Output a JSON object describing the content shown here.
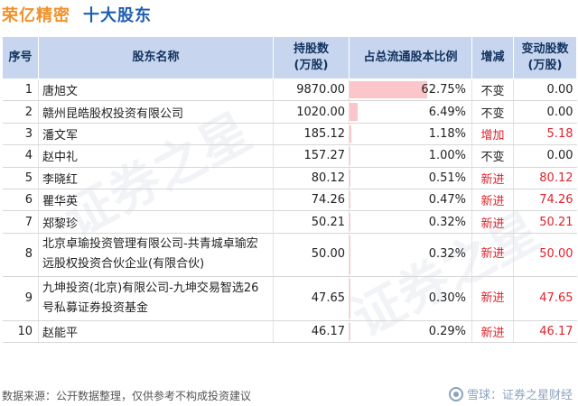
{
  "header": {
    "company": "荣亿精密",
    "subtitle": "十大股东"
  },
  "table": {
    "columns": [
      "序号",
      "股东名称",
      "持股数\n(万股)",
      "占总流通股本比例",
      "增减",
      "变动股数\n(万股)"
    ],
    "rows": [
      {
        "idx": "1",
        "name": "唐旭文",
        "shares": "9870.00",
        "ratio": "62.75%",
        "ratio_value": 62.75,
        "change": "不变",
        "change_type": "same",
        "delta": "0.00"
      },
      {
        "idx": "2",
        "name": "赣州昆皓股权投资有限公司",
        "shares": "1020.00",
        "ratio": "6.49%",
        "ratio_value": 6.49,
        "change": "不变",
        "change_type": "same",
        "delta": "0.00"
      },
      {
        "idx": "3",
        "name": "潘文军",
        "shares": "185.12",
        "ratio": "1.18%",
        "ratio_value": 1.18,
        "change": "增加",
        "change_type": "up",
        "delta": "5.18"
      },
      {
        "idx": "4",
        "name": "赵中礼",
        "shares": "157.27",
        "ratio": "1.00%",
        "ratio_value": 1.0,
        "change": "不变",
        "change_type": "same",
        "delta": "0.00"
      },
      {
        "idx": "5",
        "name": "李晓红",
        "shares": "80.12",
        "ratio": "0.51%",
        "ratio_value": 0.51,
        "change": "新进",
        "change_type": "up",
        "delta": "80.12"
      },
      {
        "idx": "6",
        "name": "瞿华英",
        "shares": "74.26",
        "ratio": "0.47%",
        "ratio_value": 0.47,
        "change": "新进",
        "change_type": "up",
        "delta": "74.26"
      },
      {
        "idx": "7",
        "name": "郑黎珍",
        "shares": "50.21",
        "ratio": "0.32%",
        "ratio_value": 0.32,
        "change": "新进",
        "change_type": "up",
        "delta": "50.21"
      },
      {
        "idx": "8",
        "name": "北京卓瑜投资管理有限公司-共青城卓瑜宏远股权投资合伙企业(有限合伙)",
        "shares": "50.00",
        "ratio": "0.32%",
        "ratio_value": 0.32,
        "change": "新进",
        "change_type": "up",
        "delta": "50.00"
      },
      {
        "idx": "9",
        "name": "九坤投资(北京)有限公司-九坤交易智选26号私募证券投资基金",
        "shares": "47.65",
        "ratio": "0.30%",
        "ratio_value": 0.3,
        "change": "新进",
        "change_type": "up",
        "delta": "47.65"
      },
      {
        "idx": "10",
        "name": "赵能平",
        "shares": "46.17",
        "ratio": "0.29%",
        "ratio_value": 0.29,
        "change": "新进",
        "change_type": "up",
        "delta": "46.17"
      }
    ]
  },
  "footer": {
    "source": "数据来源：公开数据整理，仅供参考不构成投资建议",
    "brand": "雪球：证券之星财经"
  },
  "watermark": "证券之星",
  "colors": {
    "company": "#f0922b",
    "subtitle": "#1f5fb0",
    "header_bg": "#c7d6ee",
    "bar": "#fbc5c9",
    "up": "#e0222b"
  }
}
